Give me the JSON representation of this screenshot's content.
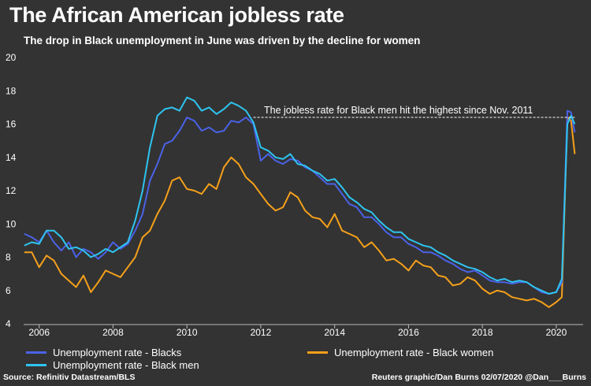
{
  "header": {
    "title": "The African American jobless rate",
    "subtitle": "The drop in Black unemployment in June was driven by the decline for women"
  },
  "footer": {
    "source": "Source: Refinitiv Datastream/BLS",
    "credit": "Reuters graphic/Dan Burns 02/07/2020 @Dan___Burns"
  },
  "chart_data": {
    "type": "line",
    "title": "The African American jobless rate",
    "subtitle": "The drop in Black unemployment in June was driven by the decline for women",
    "xlabel": "",
    "ylabel": "",
    "xlim": [
      2005.58,
      2020.62
    ],
    "ylim": [
      4,
      20
    ],
    "x_ticks": [
      2006,
      2008,
      2010,
      2012,
      2014,
      2016,
      2018,
      2020
    ],
    "x_tick_labels": [
      "2006",
      "2008",
      "2010",
      "2012",
      "2014",
      "2016",
      "2018",
      "2020"
    ],
    "y_ticks": [
      4,
      6,
      8,
      10,
      12,
      14,
      16,
      18,
      20
    ],
    "y_tick_labels": [
      "4",
      "6",
      "8",
      "10",
      "12",
      "14",
      "16",
      "18",
      "20"
    ],
    "grid": false,
    "annotation": {
      "text": "The jobless rate for Black men hit the highest since Nov. 2011",
      "y": 16.4,
      "x_start": 2011.8,
      "x_end": 2020.5
    },
    "series": [
      {
        "name": "Unemployment rate - Blacks",
        "color": "#4a62e8",
        "points": [
          [
            2005.6,
            9.4
          ],
          [
            2005.8,
            9.2
          ],
          [
            2006.0,
            8.9
          ],
          [
            2006.2,
            9.6
          ],
          [
            2006.4,
            8.9
          ],
          [
            2006.6,
            8.4
          ],
          [
            2006.8,
            8.9
          ],
          [
            2007.0,
            8.0
          ],
          [
            2007.2,
            8.5
          ],
          [
            2007.4,
            8.3
          ],
          [
            2007.6,
            7.9
          ],
          [
            2007.8,
            8.3
          ],
          [
            2008.0,
            8.9
          ],
          [
            2008.2,
            8.5
          ],
          [
            2008.4,
            8.8
          ],
          [
            2008.6,
            9.6
          ],
          [
            2008.8,
            10.6
          ],
          [
            2009.0,
            12.6
          ],
          [
            2009.2,
            13.6
          ],
          [
            2009.4,
            14.8
          ],
          [
            2009.6,
            15.0
          ],
          [
            2009.8,
            15.6
          ],
          [
            2010.0,
            16.4
          ],
          [
            2010.2,
            16.2
          ],
          [
            2010.4,
            15.6
          ],
          [
            2010.6,
            15.8
          ],
          [
            2010.8,
            15.5
          ],
          [
            2011.0,
            15.6
          ],
          [
            2011.2,
            16.2
          ],
          [
            2011.4,
            16.1
          ],
          [
            2011.6,
            16.4
          ],
          [
            2011.8,
            16.0
          ],
          [
            2012.0,
            13.8
          ],
          [
            2012.2,
            14.2
          ],
          [
            2012.4,
            13.8
          ],
          [
            2012.6,
            13.6
          ],
          [
            2012.8,
            13.9
          ],
          [
            2013.0,
            13.8
          ],
          [
            2013.2,
            13.4
          ],
          [
            2013.4,
            13.2
          ],
          [
            2013.6,
            12.8
          ],
          [
            2013.8,
            12.4
          ],
          [
            2014.0,
            12.4
          ],
          [
            2014.2,
            11.8
          ],
          [
            2014.4,
            11.2
          ],
          [
            2014.6,
            11.0
          ],
          [
            2014.8,
            10.4
          ],
          [
            2015.0,
            10.4
          ],
          [
            2015.2,
            10.0
          ],
          [
            2015.4,
            9.5
          ],
          [
            2015.6,
            9.2
          ],
          [
            2015.8,
            9.2
          ],
          [
            2016.0,
            8.8
          ],
          [
            2016.2,
            8.6
          ],
          [
            2016.4,
            8.3
          ],
          [
            2016.6,
            8.3
          ],
          [
            2016.8,
            8.1
          ],
          [
            2017.0,
            7.8
          ],
          [
            2017.2,
            7.6
          ],
          [
            2017.4,
            7.3
          ],
          [
            2017.6,
            7.1
          ],
          [
            2017.8,
            7.2
          ],
          [
            2018.0,
            6.9
          ],
          [
            2018.2,
            6.6
          ],
          [
            2018.4,
            6.5
          ],
          [
            2018.6,
            6.5
          ],
          [
            2018.8,
            6.4
          ],
          [
            2019.0,
            6.5
          ],
          [
            2019.2,
            6.5
          ],
          [
            2019.4,
            6.2
          ],
          [
            2019.6,
            5.9
          ],
          [
            2019.8,
            5.8
          ],
          [
            2020.0,
            5.9
          ],
          [
            2020.15,
            6.5
          ],
          [
            2020.3,
            16.8
          ],
          [
            2020.4,
            16.7
          ],
          [
            2020.5,
            15.5
          ]
        ]
      },
      {
        "name": "Unemployment rate - Black women",
        "color": "#f5a01a",
        "points": [
          [
            2005.6,
            8.3
          ],
          [
            2005.8,
            8.3
          ],
          [
            2006.0,
            7.4
          ],
          [
            2006.2,
            8.1
          ],
          [
            2006.4,
            7.8
          ],
          [
            2006.6,
            7.0
          ],
          [
            2006.8,
            6.6
          ],
          [
            2007.0,
            6.2
          ],
          [
            2007.2,
            6.9
          ],
          [
            2007.4,
            5.9
          ],
          [
            2007.6,
            6.5
          ],
          [
            2007.8,
            7.2
          ],
          [
            2008.0,
            7.0
          ],
          [
            2008.2,
            6.8
          ],
          [
            2008.4,
            7.4
          ],
          [
            2008.6,
            8.0
          ],
          [
            2008.8,
            9.2
          ],
          [
            2009.0,
            9.6
          ],
          [
            2009.2,
            10.6
          ],
          [
            2009.4,
            11.4
          ],
          [
            2009.6,
            12.6
          ],
          [
            2009.8,
            12.8
          ],
          [
            2010.0,
            12.1
          ],
          [
            2010.2,
            12.0
          ],
          [
            2010.4,
            11.8
          ],
          [
            2010.6,
            12.4
          ],
          [
            2010.8,
            12.1
          ],
          [
            2011.0,
            13.4
          ],
          [
            2011.2,
            14.0
          ],
          [
            2011.4,
            13.6
          ],
          [
            2011.6,
            12.8
          ],
          [
            2011.8,
            12.4
          ],
          [
            2012.0,
            11.8
          ],
          [
            2012.2,
            11.2
          ],
          [
            2012.4,
            10.8
          ],
          [
            2012.6,
            11.0
          ],
          [
            2012.8,
            11.9
          ],
          [
            2013.0,
            11.6
          ],
          [
            2013.2,
            10.8
          ],
          [
            2013.4,
            10.4
          ],
          [
            2013.6,
            10.3
          ],
          [
            2013.8,
            9.8
          ],
          [
            2014.0,
            10.6
          ],
          [
            2014.2,
            9.6
          ],
          [
            2014.4,
            9.4
          ],
          [
            2014.6,
            9.2
          ],
          [
            2014.8,
            8.6
          ],
          [
            2015.0,
            8.9
          ],
          [
            2015.2,
            8.4
          ],
          [
            2015.4,
            7.8
          ],
          [
            2015.6,
            7.9
          ],
          [
            2015.8,
            7.6
          ],
          [
            2016.0,
            7.2
          ],
          [
            2016.2,
            7.8
          ],
          [
            2016.4,
            7.5
          ],
          [
            2016.6,
            7.4
          ],
          [
            2016.8,
            6.9
          ],
          [
            2017.0,
            6.8
          ],
          [
            2017.2,
            6.3
          ],
          [
            2017.4,
            6.4
          ],
          [
            2017.6,
            6.8
          ],
          [
            2017.8,
            6.6
          ],
          [
            2018.0,
            6.1
          ],
          [
            2018.2,
            5.8
          ],
          [
            2018.4,
            6.0
          ],
          [
            2018.6,
            5.9
          ],
          [
            2018.8,
            5.6
          ],
          [
            2019.0,
            5.5
          ],
          [
            2019.2,
            5.4
          ],
          [
            2019.4,
            5.5
          ],
          [
            2019.6,
            5.3
          ],
          [
            2019.8,
            5.0
          ],
          [
            2020.0,
            5.3
          ],
          [
            2020.15,
            5.6
          ],
          [
            2020.3,
            16.4
          ],
          [
            2020.4,
            16.2
          ],
          [
            2020.5,
            14.2
          ]
        ]
      },
      {
        "name": "Unemployment rate - Black men",
        "color": "#2ec4f0",
        "points": [
          [
            2005.6,
            8.7
          ],
          [
            2005.8,
            8.9
          ],
          [
            2006.0,
            8.8
          ],
          [
            2006.2,
            9.6
          ],
          [
            2006.4,
            9.6
          ],
          [
            2006.6,
            9.2
          ],
          [
            2006.8,
            8.5
          ],
          [
            2007.0,
            8.6
          ],
          [
            2007.2,
            8.4
          ],
          [
            2007.4,
            8.0
          ],
          [
            2007.6,
            8.2
          ],
          [
            2007.8,
            8.5
          ],
          [
            2008.0,
            8.3
          ],
          [
            2008.2,
            8.6
          ],
          [
            2008.4,
            8.9
          ],
          [
            2008.6,
            10.2
          ],
          [
            2008.8,
            12.0
          ],
          [
            2009.0,
            14.6
          ],
          [
            2009.2,
            16.5
          ],
          [
            2009.4,
            16.9
          ],
          [
            2009.6,
            17.0
          ],
          [
            2009.8,
            16.8
          ],
          [
            2010.0,
            17.6
          ],
          [
            2010.2,
            17.4
          ],
          [
            2010.4,
            16.8
          ],
          [
            2010.6,
            17.0
          ],
          [
            2010.8,
            16.6
          ],
          [
            2011.0,
            16.9
          ],
          [
            2011.2,
            17.3
          ],
          [
            2011.4,
            17.1
          ],
          [
            2011.6,
            16.8
          ],
          [
            2011.8,
            16.1
          ],
          [
            2012.0,
            14.6
          ],
          [
            2012.2,
            14.4
          ],
          [
            2012.4,
            14.0
          ],
          [
            2012.6,
            13.9
          ],
          [
            2012.8,
            14.2
          ],
          [
            2013.0,
            13.6
          ],
          [
            2013.2,
            13.5
          ],
          [
            2013.4,
            13.2
          ],
          [
            2013.6,
            13.0
          ],
          [
            2013.8,
            12.6
          ],
          [
            2014.0,
            12.7
          ],
          [
            2014.2,
            12.2
          ],
          [
            2014.4,
            11.6
          ],
          [
            2014.6,
            11.3
          ],
          [
            2014.8,
            10.9
          ],
          [
            2015.0,
            10.7
          ],
          [
            2015.2,
            10.2
          ],
          [
            2015.4,
            9.8
          ],
          [
            2015.6,
            9.5
          ],
          [
            2015.8,
            9.5
          ],
          [
            2016.0,
            9.1
          ],
          [
            2016.2,
            8.9
          ],
          [
            2016.4,
            8.7
          ],
          [
            2016.6,
            8.6
          ],
          [
            2016.8,
            8.3
          ],
          [
            2017.0,
            8.1
          ],
          [
            2017.2,
            7.8
          ],
          [
            2017.4,
            7.6
          ],
          [
            2017.6,
            7.4
          ],
          [
            2017.8,
            7.3
          ],
          [
            2018.0,
            7.1
          ],
          [
            2018.2,
            6.8
          ],
          [
            2018.4,
            6.6
          ],
          [
            2018.6,
            6.7
          ],
          [
            2018.8,
            6.5
          ],
          [
            2019.0,
            6.6
          ],
          [
            2019.2,
            6.5
          ],
          [
            2019.4,
            6.2
          ],
          [
            2019.6,
            6.0
          ],
          [
            2019.8,
            5.8
          ],
          [
            2020.0,
            5.9
          ],
          [
            2020.15,
            6.7
          ],
          [
            2020.3,
            16.0
          ],
          [
            2020.4,
            16.5
          ],
          [
            2020.5,
            16.0
          ]
        ]
      }
    ]
  }
}
